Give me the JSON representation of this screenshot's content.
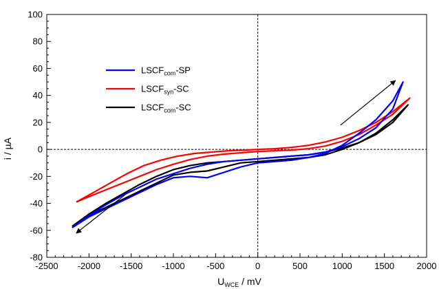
{
  "chart_data": {
    "type": "line",
    "title": "",
    "xlabel": {
      "main": "U",
      "sub": "WCE",
      "rest": " / mV"
    },
    "ylabel": "i / µA",
    "xlim": [
      -2500,
      2000
    ],
    "ylim": [
      -80,
      100
    ],
    "xticks": [
      -2500,
      -2000,
      -1500,
      -1000,
      -500,
      0,
      500,
      1000,
      1500,
      2000
    ],
    "yticks": [
      -80,
      -60,
      -40,
      -20,
      0,
      20,
      40,
      60,
      80,
      100
    ],
    "grid": false,
    "reference_lines": {
      "x": 0,
      "y": 0,
      "style": "dashed"
    },
    "legend_position": "upper-left",
    "series": [
      {
        "name": {
          "main": "LSCF",
          "sub": "com",
          "rest": "-SP"
        },
        "color": "#0000ff",
        "x": [
          -2200,
          -2000,
          -1800,
          -1600,
          -1400,
          -1200,
          -1000,
          -800,
          -600,
          -400,
          -200,
          0,
          200,
          400,
          600,
          800,
          1000,
          1200,
          1400,
          1600,
          1720,
          1720,
          1600,
          1400,
          1200,
          1000,
          800,
          600,
          400,
          200,
          0,
          -200,
          -400,
          -600,
          -800,
          -1000,
          -1200,
          -1400,
          -1600,
          -1800,
          -2000,
          -2200
        ],
        "y": [
          -58,
          -50,
          -44,
          -38,
          -32,
          -26,
          -21,
          -20,
          -21,
          -17,
          -13,
          -10,
          -9,
          -8,
          -6,
          -3,
          3,
          12,
          22,
          36,
          50,
          50,
          30,
          16,
          8,
          2,
          -2,
          -4,
          -5,
          -6,
          -7,
          -8,
          -9,
          -11,
          -14,
          -18,
          -22,
          -28,
          -34,
          -41,
          -49,
          -58
        ]
      },
      {
        "name": {
          "main": "LSCF",
          "sub": "syn",
          "rest": "-SC"
        },
        "color": "#ff0000",
        "x": [
          -2150,
          -1950,
          -1750,
          -1550,
          -1350,
          -1150,
          -950,
          -750,
          -550,
          -350,
          -150,
          0,
          200,
          400,
          600,
          800,
          1000,
          1200,
          1400,
          1600,
          1800,
          1800,
          1600,
          1400,
          1200,
          1000,
          800,
          600,
          400,
          200,
          0,
          -200,
          -400,
          -600,
          -800,
          -1000,
          -1200,
          -1400,
          -1600,
          -1800,
          -2000,
          -2150
        ],
        "y": [
          -39,
          -32,
          -25,
          -18,
          -12,
          -8,
          -5,
          -3,
          -2,
          -1,
          -0.5,
          0,
          0.5,
          1.5,
          3,
          5.5,
          9,
          14,
          20,
          28,
          38,
          38,
          26,
          18,
          11,
          6,
          2.5,
          0.5,
          -0.5,
          -1,
          -1.5,
          -2.5,
          -3.5,
          -5,
          -7.5,
          -11,
          -15,
          -20,
          -25,
          -30,
          -35,
          -39
        ]
      },
      {
        "name": {
          "main": "LSCF",
          "sub": "com",
          "rest": "-SC"
        },
        "color": "#000000",
        "x": [
          -2200,
          -2000,
          -1800,
          -1600,
          -1400,
          -1200,
          -1000,
          -800,
          -600,
          -400,
          -200,
          0,
          200,
          400,
          600,
          800,
          1000,
          1200,
          1400,
          1600,
          1780,
          1780,
          1600,
          1400,
          1200,
          1000,
          800,
          600,
          400,
          200,
          0,
          -200,
          -400,
          -600,
          -800,
          -1000,
          -1200,
          -1400,
          -1600,
          -1800,
          -2000,
          -2200
        ],
        "y": [
          -57,
          -49,
          -43,
          -37,
          -31,
          -25,
          -19,
          -17,
          -16,
          -13,
          -10,
          -9,
          -8,
          -7,
          -6,
          -4,
          0,
          5,
          12,
          22,
          33,
          33,
          20,
          11,
          5,
          1,
          -2,
          -4,
          -5,
          -6,
          -7,
          -8,
          -9,
          -10,
          -12,
          -15,
          -20,
          -26,
          -33,
          -40,
          -48,
          -57
        ]
      }
    ],
    "annotations": [
      {
        "type": "arrow",
        "from": [
          980,
          18
        ],
        "to": [
          1630,
          51
        ],
        "color": "#000000"
      },
      {
        "type": "arrow",
        "from": [
          -1560,
          -33
        ],
        "to": [
          -2150,
          -62
        ],
        "color": "#000000"
      }
    ]
  }
}
